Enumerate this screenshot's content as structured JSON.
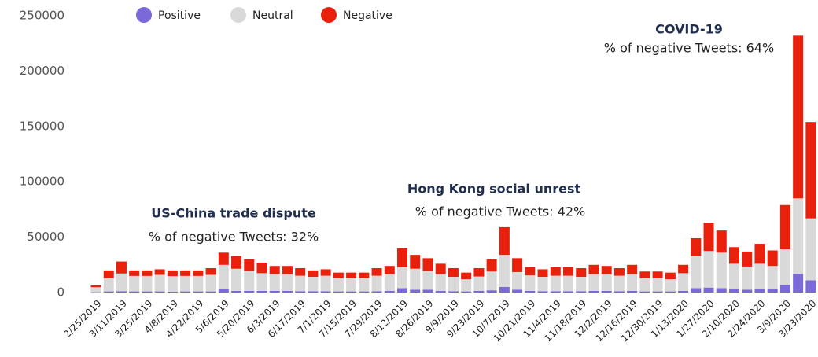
{
  "chart_data": {
    "type": "stacked_bar",
    "categories": [
      "2/25/2019",
      null,
      "3/11/2019",
      null,
      "3/25/2019",
      null,
      "4/8/2019",
      null,
      "4/22/2019",
      null,
      "5/6/2019",
      null,
      "5/20/2019",
      null,
      "6/3/2019",
      null,
      "6/17/2019",
      null,
      "7/1/2019",
      null,
      "7/15/2019",
      null,
      "7/29/2019",
      null,
      "8/12/2019",
      null,
      "8/26/2019",
      null,
      "9/9/2019",
      null,
      "9/23/2019",
      null,
      "10/7/2019",
      null,
      "10/21/2019",
      null,
      "11/4/2019",
      null,
      "11/18/2019",
      null,
      "12/2/2019",
      null,
      "12/16/2019",
      null,
      "12/30/2019",
      null,
      "1/13/2020",
      null,
      "1/27/2020",
      null,
      "2/10/2020",
      null,
      "2/24/2020",
      null,
      "3/9/2020",
      null,
      "3/23/2020"
    ],
    "series": [
      {
        "name": "Positive",
        "color": "#7b68d9",
        "values": [
          300,
          1000,
          1200,
          1000,
          1000,
          1000,
          800,
          1000,
          1000,
          1000,
          3000,
          1500,
          1500,
          1500,
          1500,
          1500,
          1200,
          1200,
          1200,
          1000,
          1000,
          1000,
          1200,
          1500,
          4000,
          2500,
          2500,
          1500,
          1200,
          1000,
          1500,
          2000,
          5000,
          2500,
          1500,
          1200,
          1200,
          1200,
          1200,
          1500,
          1500,
          1200,
          1500,
          1000,
          1000,
          1000,
          1500,
          4000,
          4500,
          4000,
          3000,
          2500,
          3000,
          3000,
          7000,
          17000,
          11000
        ]
      },
      {
        "name": "Neutral",
        "color": "#d9d9d9",
        "values": [
          4500,
          12000,
          16000,
          14000,
          14000,
          15000,
          14000,
          14000,
          14000,
          15000,
          22000,
          20000,
          18000,
          16000,
          15000,
          15000,
          14000,
          13000,
          14000,
          12000,
          12000,
          12000,
          14000,
          15000,
          19000,
          19000,
          17000,
          15000,
          13000,
          11000,
          13000,
          17000,
          29000,
          16000,
          14000,
          13000,
          14000,
          14000,
          13000,
          15000,
          15000,
          14000,
          15000,
          12000,
          12000,
          11000,
          16000,
          29000,
          33000,
          32000,
          23000,
          21000,
          23000,
          21000,
          32000,
          68000,
          56000
        ]
      },
      {
        "name": "Negative",
        "color": "#e8200c",
        "values": [
          1700,
          7000,
          10800,
          5000,
          5000,
          5000,
          5200,
          5000,
          5000,
          6000,
          11000,
          11500,
          10500,
          9500,
          7500,
          7500,
          6800,
          5800,
          5800,
          5000,
          5000,
          5000,
          6800,
          7500,
          17000,
          12500,
          11500,
          9500,
          7800,
          6000,
          7500,
          11000,
          25000,
          12500,
          7500,
          6800,
          7800,
          7800,
          7800,
          8500,
          7500,
          6800,
          8500,
          6000,
          6000,
          6000,
          7500,
          16000,
          25500,
          20000,
          15000,
          13500,
          18000,
          14000,
          40000,
          147000,
          87000
        ]
      }
    ],
    "ylim": [
      0,
      250000
    ],
    "yticks": [
      0,
      50000,
      100000,
      150000,
      200000,
      250000
    ],
    "grid": false,
    "legend": "top",
    "annotations": [
      {
        "title": "US-China trade dispute",
        "text": "% of negative Tweets: 32%"
      },
      {
        "title": "Hong Kong social unrest",
        "text": "% of negative Tweets: 42%"
      },
      {
        "title": "COVID-19",
        "text": "% of negative Tweets: 64%"
      }
    ]
  }
}
